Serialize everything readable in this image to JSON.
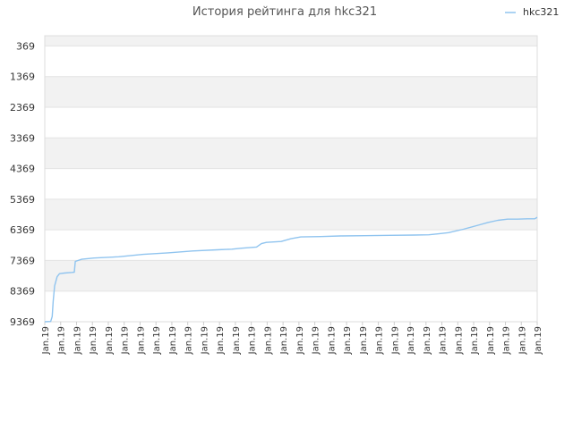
{
  "chart_data": {
    "type": "line",
    "title": "История рейтинга для hkc321",
    "xlabel": "",
    "ylabel": "",
    "y_inverted": true,
    "ylim": [
      9369,
      36
    ],
    "y_ticks": [
      369,
      1369,
      2369,
      3369,
      4369,
      5369,
      6369,
      7369,
      8369,
      9369
    ],
    "x_tick_labels": [
      "Jan.19",
      "Jan.19",
      "Jan.19",
      "Jan.19",
      "Jan.19",
      "Jan.19",
      "Jan.19",
      "Jan.19",
      "Jan.19",
      "Jan.19",
      "Jan.19",
      "Jan.19",
      "Jan.19",
      "Jan.19",
      "Jan.19",
      "Jan.19",
      "Jan.19",
      "Jan.19",
      "Jan.19",
      "Jan.19",
      "Jan.19",
      "Jan.19",
      "Jan.19",
      "Jan.19",
      "Jan.19",
      "Jan.19",
      "Jan.19",
      "Jan.19",
      "Jan.19",
      "Jan.19",
      "Jan.19",
      "Jan.19"
    ],
    "grid": true,
    "legend_position": "top-right",
    "series": [
      {
        "name": "hkc321",
        "color": "#90c4ef",
        "points": [
          [
            0,
            9369
          ],
          [
            0.012,
            9360
          ],
          [
            0.015,
            9200
          ],
          [
            0.017,
            8700
          ],
          [
            0.02,
            8200
          ],
          [
            0.025,
            7900
          ],
          [
            0.03,
            7800
          ],
          [
            0.04,
            7780
          ],
          [
            0.055,
            7760
          ],
          [
            0.06,
            7750
          ],
          [
            0.062,
            7400
          ],
          [
            0.075,
            7330
          ],
          [
            0.1,
            7290
          ],
          [
            0.15,
            7250
          ],
          [
            0.2,
            7170
          ],
          [
            0.25,
            7120
          ],
          [
            0.3,
            7060
          ],
          [
            0.35,
            7020
          ],
          [
            0.38,
            7000
          ],
          [
            0.4,
            6970
          ],
          [
            0.43,
            6930
          ],
          [
            0.44,
            6820
          ],
          [
            0.45,
            6780
          ],
          [
            0.48,
            6750
          ],
          [
            0.5,
            6660
          ],
          [
            0.52,
            6600
          ],
          [
            0.56,
            6590
          ],
          [
            0.6,
            6570
          ],
          [
            0.65,
            6560
          ],
          [
            0.7,
            6550
          ],
          [
            0.75,
            6540
          ],
          [
            0.78,
            6530
          ],
          [
            0.8,
            6500
          ],
          [
            0.82,
            6460
          ],
          [
            0.85,
            6350
          ],
          [
            0.88,
            6220
          ],
          [
            0.9,
            6130
          ],
          [
            0.92,
            6060
          ],
          [
            0.94,
            6020
          ],
          [
            0.96,
            6020
          ],
          [
            0.98,
            6010
          ],
          [
            0.995,
            6010
          ],
          [
            1.0,
            5960
          ]
        ]
      }
    ]
  }
}
